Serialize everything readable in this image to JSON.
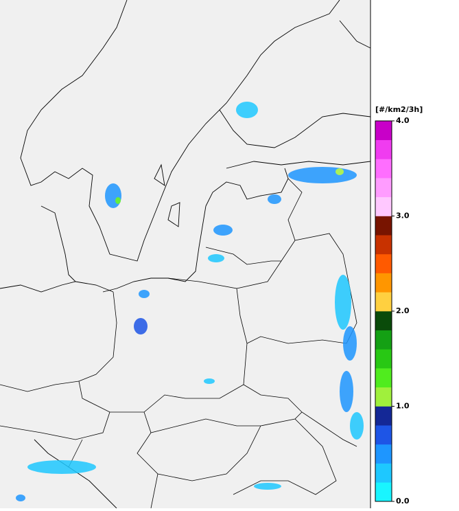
{
  "colorbar": {
    "label": "[#/km2/3h]",
    "range": [
      0,
      4
    ],
    "ticks": [
      {
        "value": 0,
        "label": "0.0"
      },
      {
        "value": 1,
        "label": "1.0"
      },
      {
        "value": 2,
        "label": "2.0"
      },
      {
        "value": 3,
        "label": "3.0"
      },
      {
        "value": 4,
        "label": "4.0"
      }
    ],
    "colors": [
      "#19f5ff",
      "#1ec8ff",
      "#1e96ff",
      "#1e55e6",
      "#142896",
      "#a0f03c",
      "#50ec1e",
      "#28c814",
      "#14a014",
      "#0a4b0a",
      "#ffd040",
      "#ff9600",
      "#ff5a00",
      "#c83200",
      "#781400",
      "#ffc8ff",
      "#ff9cff",
      "#ff6eff",
      "#f03cf0",
      "#c800c8"
    ]
  }
}
